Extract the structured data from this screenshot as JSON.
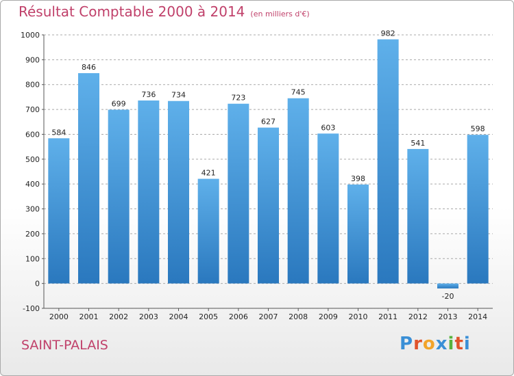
{
  "header": {
    "title": "Résultat Comptable 2000 à 2014",
    "unit_note": "(en milliers d'€)"
  },
  "footer": {
    "commune": "SAINT-PALAIS",
    "logo_text": "Proxiti",
    "logo_colors": [
      "#3a8fd6",
      "#e0532b",
      "#f2a42a",
      "#3a8fd6",
      "#57b23c",
      "#e0532b",
      "#3a8fd6"
    ]
  },
  "colors": {
    "bar_light": "#5fb0ea",
    "bar_dark": "#2a78be",
    "grid": "#a8a8a8",
    "axis_text": "#222222",
    "title": "#c0406a"
  },
  "chart_data": {
    "type": "bar",
    "categories": [
      "2000",
      "2001",
      "2002",
      "2003",
      "2004",
      "2005",
      "2006",
      "2007",
      "2008",
      "2009",
      "2010",
      "2011",
      "2012",
      "2013",
      "2014"
    ],
    "values": [
      584,
      846,
      699,
      736,
      734,
      421,
      723,
      627,
      745,
      603,
      398,
      982,
      541,
      -20,
      598
    ],
    "ylim": [
      -100,
      1000
    ],
    "yticks": [
      -100,
      0,
      100,
      200,
      300,
      400,
      500,
      600,
      700,
      800,
      900,
      1000
    ],
    "grid": true,
    "grid_style": "dashed",
    "legend": "none"
  }
}
